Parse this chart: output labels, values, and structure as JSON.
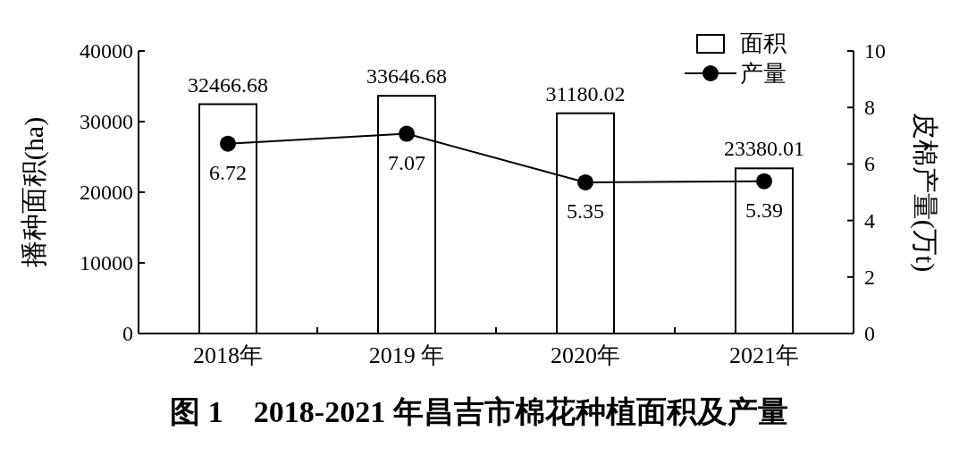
{
  "chart_data": {
    "type": "bar",
    "title": "图 1　2018-2021 年昌吉市棉花种植面积及产量",
    "ylabel": "播种面积(ha)",
    "y2label": "皮棉产量(万t)",
    "categories": [
      "2018年",
      "2019 年",
      "2020年",
      "2021年"
    ],
    "series": [
      {
        "name": "面积",
        "color": "#ffffff",
        "values": [
          32466.68,
          33646.68,
          31180.02,
          23380.01
        ]
      },
      {
        "name": "产量",
        "type": "line",
        "axis": "y2",
        "color": "#000000",
        "values": [
          6.72,
          7.07,
          5.35,
          5.39
        ]
      }
    ],
    "ylim": [
      0,
      40000
    ],
    "yticks": [
      0,
      10000,
      20000,
      30000,
      40000
    ],
    "y2lim": [
      0,
      10
    ],
    "y2ticks": [
      0,
      2,
      4,
      6,
      8,
      10
    ],
    "data_labels": true,
    "legend": "top right",
    "marker": "circle",
    "grid": false
  }
}
